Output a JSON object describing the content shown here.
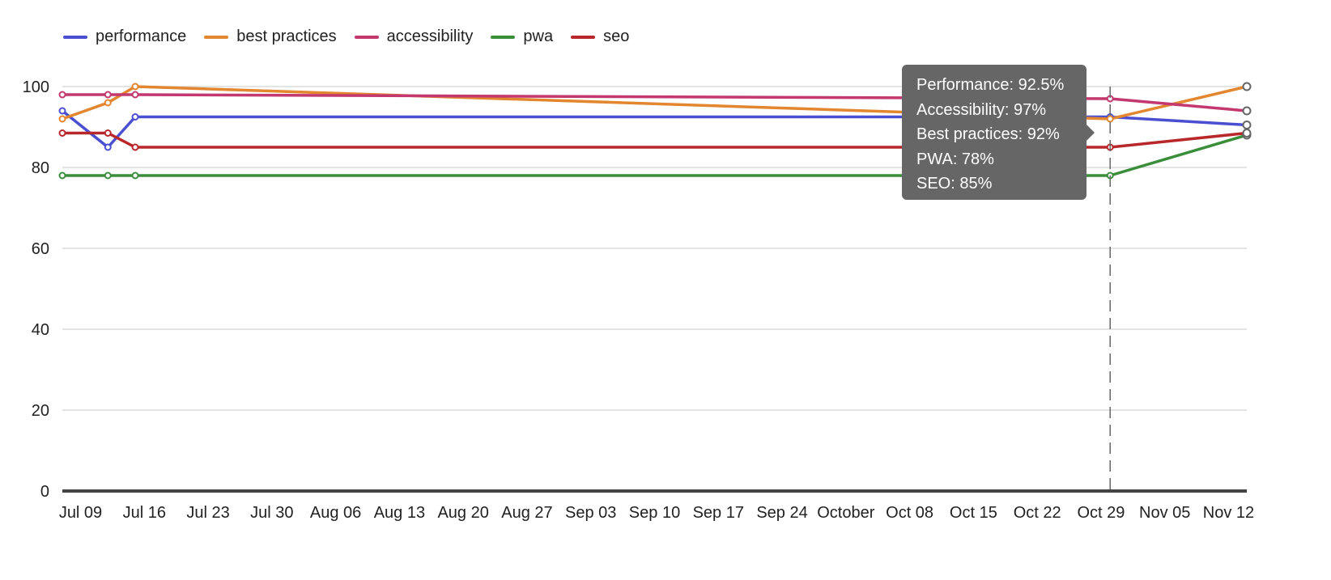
{
  "chart_data": {
    "type": "line",
    "legend_position": "top-left",
    "grid": true,
    "ylim": [
      0,
      100
    ],
    "y_ticks": [
      0,
      20,
      40,
      60,
      80,
      100
    ],
    "x_tick_labels": [
      "Jul 09",
      "Jul 16",
      "Jul 23",
      "Jul 30",
      "Aug 06",
      "Aug 13",
      "Aug 20",
      "Aug 27",
      "Sep 03",
      "Sep 10",
      "Sep 17",
      "Sep 24",
      "October",
      "Oct 08",
      "Oct 15",
      "Oct 22",
      "Oct 29",
      "Nov 05",
      "Nov 12"
    ],
    "x": [
      "Jul 07",
      "Jul 12",
      "Jul 15",
      "Oct 30",
      "Nov 14"
    ],
    "series": [
      {
        "name": "performance",
        "color": "#4a4fd1",
        "values": [
          94,
          85,
          92.5,
          92.5,
          90.5
        ]
      },
      {
        "name": "best practices",
        "color": "#e2862f",
        "values": [
          92,
          96,
          100,
          92,
          100
        ]
      },
      {
        "name": "accessibility",
        "color": "#c2386f",
        "values": [
          98,
          98,
          98,
          97,
          94
        ]
      },
      {
        "name": "pwa",
        "color": "#3a8e3a",
        "values": [
          78,
          78,
          78,
          78,
          88
        ]
      },
      {
        "name": "seo",
        "color": "#b8282a",
        "values": [
          88.5,
          88.5,
          85,
          85,
          88.5
        ]
      }
    ],
    "hover_index": 3,
    "tooltip": {
      "rows": [
        "Performance: 92.5%",
        "Accessibility: 97%",
        "Best practices: 92%",
        "PWA: 78%",
        "SEO: 85%"
      ]
    }
  }
}
